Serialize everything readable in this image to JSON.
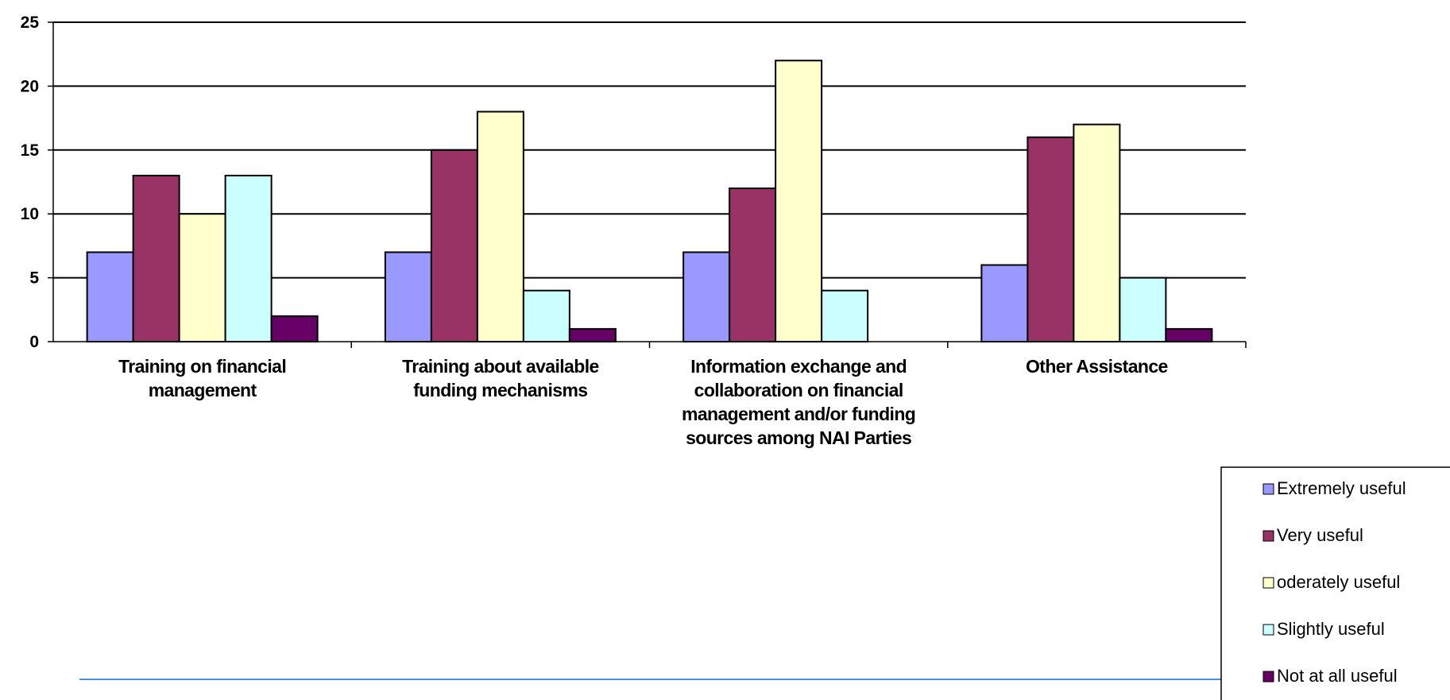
{
  "chart_data": {
    "type": "bar",
    "categories": [
      [
        "Training on financial",
        "management"
      ],
      [
        "Training about available",
        "funding mechanisms"
      ],
      [
        "Information exchange and",
        "collaboration on financial",
        "management and/or funding",
        "sources among NAI Parties"
      ],
      [
        "Other Assistance"
      ]
    ],
    "series": [
      {
        "name": "Extremely useful",
        "color": "#9999FF",
        "values": [
          7,
          7,
          7,
          6
        ]
      },
      {
        "name": "Very useful",
        "color": "#993366",
        "values": [
          13,
          15,
          12,
          16
        ]
      },
      {
        "name": "oderately useful",
        "color": "#FFFFCC",
        "values": [
          10,
          18,
          22,
          17
        ]
      },
      {
        "name": "Slightly useful",
        "color": "#CCFFFF",
        "values": [
          13,
          4,
          4,
          5
        ]
      },
      {
        "name": "Not at all useful",
        "color": "#660066",
        "values": [
          2,
          1,
          0,
          1
        ]
      }
    ],
    "ylim": [
      0,
      25
    ],
    "yticks": [
      "0",
      "5",
      "10",
      "15",
      "20",
      "25"
    ],
    "grid": true,
    "legend_position": "bottom-right",
    "title": "",
    "xlabel": "",
    "ylabel": ""
  },
  "decoration": {
    "footer_line_color": "#4A90D9"
  }
}
